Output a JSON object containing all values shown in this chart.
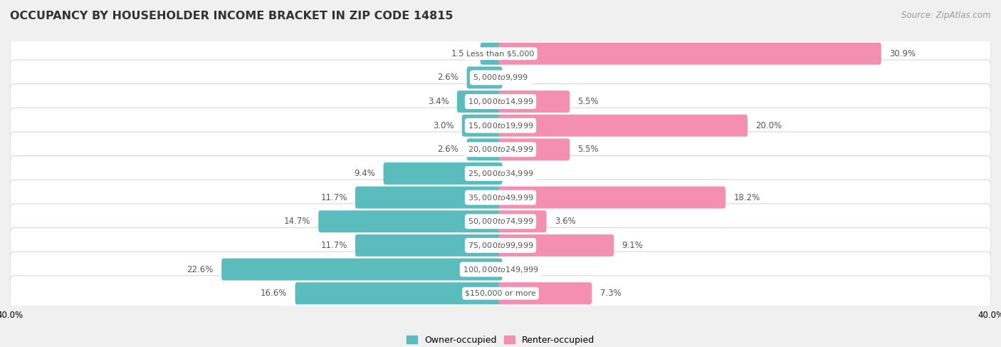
{
  "title": "OCCUPANCY BY HOUSEHOLDER INCOME BRACKET IN ZIP CODE 14815",
  "source": "Source: ZipAtlas.com",
  "categories": [
    "Less than $5,000",
    "$5,000 to $9,999",
    "$10,000 to $14,999",
    "$15,000 to $19,999",
    "$20,000 to $24,999",
    "$25,000 to $34,999",
    "$35,000 to $49,999",
    "$50,000 to $74,999",
    "$75,000 to $99,999",
    "$100,000 to $149,999",
    "$150,000 or more"
  ],
  "owner_pct": [
    1.5,
    2.6,
    3.4,
    3.0,
    2.6,
    9.4,
    11.7,
    14.7,
    11.7,
    22.6,
    16.6
  ],
  "renter_pct": [
    30.9,
    0.0,
    5.5,
    20.0,
    5.5,
    0.0,
    18.2,
    3.6,
    9.1,
    0.0,
    7.3
  ],
  "owner_color": "#5bbcbd",
  "renter_color": "#f48fb1",
  "background_color": "#f0f0f0",
  "row_bg_color": "#ffffff",
  "row_border_color": "#d8d8d8",
  "text_color": "#555555",
  "label_bg_color": "#ffffff",
  "axis_max": 40.0,
  "title_fontsize": 11.5,
  "bar_label_fontsize": 8.5,
  "cat_label_fontsize": 8,
  "legend_fontsize": 9,
  "source_fontsize": 8.5
}
